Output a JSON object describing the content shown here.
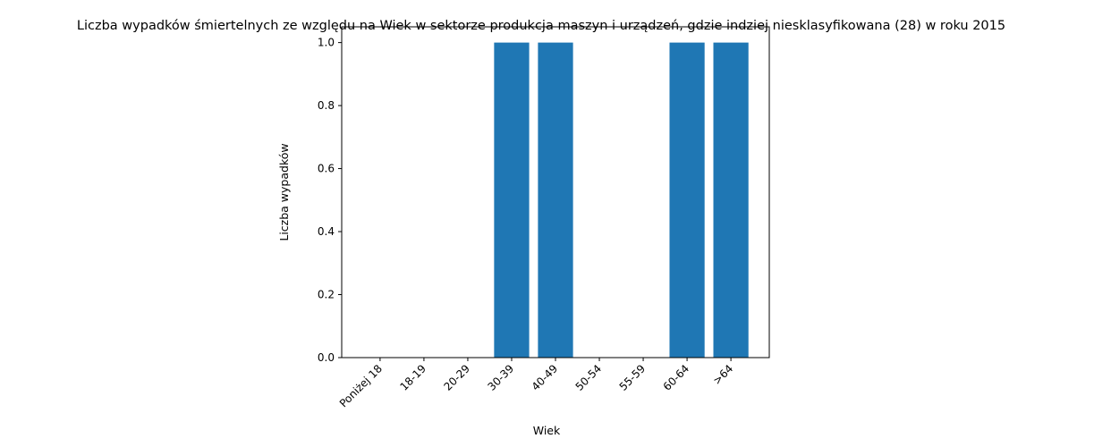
{
  "chart_data": {
    "type": "bar",
    "title": "Liczba wypadków śmiertelnych ze względu na Wiek w sektorze produkcja maszyn i urządzeń, gdzie indziej niesklasyfikowana (28)  w roku 2015",
    "xlabel": "Wiek",
    "ylabel": "Liczba wypadków",
    "categories": [
      "Poniżej 18",
      "18-19",
      "20-29",
      "30-39",
      "40-49",
      "50-54",
      "55-59",
      "60-64",
      ">64"
    ],
    "values": [
      0,
      0,
      0,
      1,
      1,
      0,
      0,
      1,
      1
    ],
    "ylim": [
      0,
      1.05
    ],
    "yticks": [
      0.0,
      0.2,
      0.4,
      0.6,
      0.8,
      1.0
    ],
    "ytick_labels": [
      "0.0",
      "0.2",
      "0.4",
      "0.6",
      "0.8",
      "1.0"
    ],
    "bar_color": "#1f77b4",
    "grid": false,
    "legend": "none"
  }
}
